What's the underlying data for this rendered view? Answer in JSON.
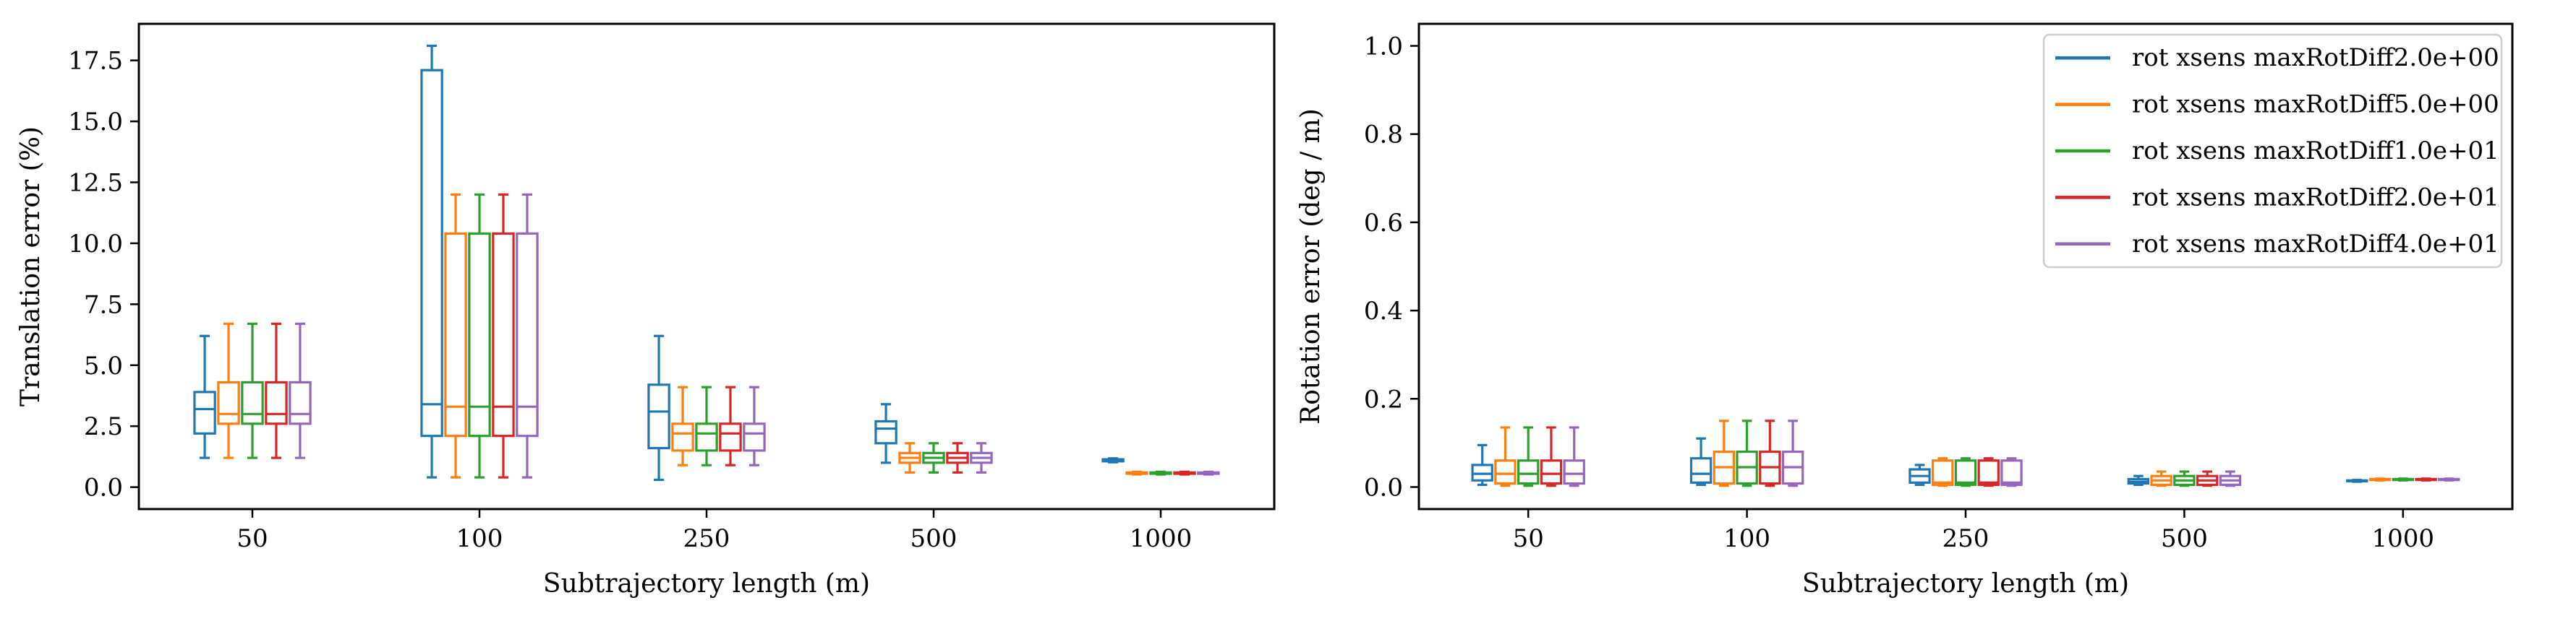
{
  "colors": {
    "series": [
      "#1f77b4",
      "#ff7f0e",
      "#2ca02c",
      "#d62728",
      "#9467bd"
    ],
    "frame": "#000000",
    "legend_border": "#cccccc"
  },
  "chart_data": [
    {
      "type": "box",
      "title": "",
      "xlabel": "Subtrajectory length (m)",
      "ylabel": "Translation error (%)",
      "categories": [
        "50",
        "100",
        "250",
        "500",
        "1000"
      ],
      "ylim": [
        -0.9,
        19.0
      ],
      "yticks": [
        0.0,
        2.5,
        5.0,
        7.5,
        10.0,
        12.5,
        15.0,
        17.5
      ],
      "ytick_labels": [
        "0.0",
        "2.5",
        "5.0",
        "7.5",
        "10.0",
        "12.5",
        "15.0",
        "17.5"
      ],
      "grid": false,
      "legend": false,
      "series": [
        {
          "name": "rot xsens maxRotDiff2.0e+00",
          "boxes": [
            {
              "whislo": 1.2,
              "q1": 2.2,
              "med": 3.2,
              "q3": 3.9,
              "whishi": 6.2
            },
            {
              "whislo": 0.4,
              "q1": 2.1,
              "med": 3.4,
              "q3": 17.1,
              "whishi": 18.1
            },
            {
              "whislo": 0.3,
              "q1": 1.6,
              "med": 3.1,
              "q3": 4.2,
              "whishi": 6.2
            },
            {
              "whislo": 1.0,
              "q1": 1.8,
              "med": 2.4,
              "q3": 2.7,
              "whishi": 3.4
            },
            {
              "whislo": 1.02,
              "q1": 1.06,
              "med": 1.1,
              "q3": 1.14,
              "whishi": 1.18
            }
          ]
        },
        {
          "name": "rot xsens maxRotDiff5.0e+00",
          "boxes": [
            {
              "whislo": 1.2,
              "q1": 2.6,
              "med": 3.0,
              "q3": 4.3,
              "whishi": 6.7
            },
            {
              "whislo": 0.4,
              "q1": 2.1,
              "med": 3.3,
              "q3": 10.4,
              "whishi": 12.0
            },
            {
              "whislo": 0.9,
              "q1": 1.5,
              "med": 2.2,
              "q3": 2.6,
              "whishi": 4.1
            },
            {
              "whislo": 0.6,
              "q1": 1.0,
              "med": 1.2,
              "q3": 1.4,
              "whishi": 1.8
            },
            {
              "whislo": 0.52,
              "q1": 0.55,
              "med": 0.57,
              "q3": 0.6,
              "whishi": 0.63
            }
          ]
        },
        {
          "name": "rot xsens maxRotDiff1.0e+01",
          "boxes": [
            {
              "whislo": 1.2,
              "q1": 2.6,
              "med": 3.0,
              "q3": 4.3,
              "whishi": 6.7
            },
            {
              "whislo": 0.4,
              "q1": 2.1,
              "med": 3.3,
              "q3": 10.4,
              "whishi": 12.0
            },
            {
              "whislo": 0.9,
              "q1": 1.5,
              "med": 2.2,
              "q3": 2.6,
              "whishi": 4.1
            },
            {
              "whislo": 0.6,
              "q1": 1.0,
              "med": 1.2,
              "q3": 1.4,
              "whishi": 1.8
            },
            {
              "whislo": 0.52,
              "q1": 0.55,
              "med": 0.57,
              "q3": 0.6,
              "whishi": 0.63
            }
          ]
        },
        {
          "name": "rot xsens maxRotDiff2.0e+01",
          "boxes": [
            {
              "whislo": 1.2,
              "q1": 2.6,
              "med": 3.0,
              "q3": 4.3,
              "whishi": 6.7
            },
            {
              "whislo": 0.4,
              "q1": 2.1,
              "med": 3.3,
              "q3": 10.4,
              "whishi": 12.0
            },
            {
              "whislo": 0.9,
              "q1": 1.5,
              "med": 2.2,
              "q3": 2.6,
              "whishi": 4.1
            },
            {
              "whislo": 0.6,
              "q1": 1.0,
              "med": 1.2,
              "q3": 1.4,
              "whishi": 1.8
            },
            {
              "whislo": 0.52,
              "q1": 0.55,
              "med": 0.57,
              "q3": 0.6,
              "whishi": 0.63
            }
          ]
        },
        {
          "name": "rot xsens maxRotDiff4.0e+01",
          "boxes": [
            {
              "whislo": 1.2,
              "q1": 2.6,
              "med": 3.0,
              "q3": 4.3,
              "whishi": 6.7
            },
            {
              "whislo": 0.4,
              "q1": 2.1,
              "med": 3.3,
              "q3": 10.4,
              "whishi": 12.0
            },
            {
              "whislo": 0.9,
              "q1": 1.5,
              "med": 2.2,
              "q3": 2.6,
              "whishi": 4.1
            },
            {
              "whislo": 0.6,
              "q1": 1.0,
              "med": 1.2,
              "q3": 1.4,
              "whishi": 1.8
            },
            {
              "whislo": 0.52,
              "q1": 0.55,
              "med": 0.57,
              "q3": 0.6,
              "whishi": 0.63
            }
          ]
        }
      ]
    },
    {
      "type": "box",
      "title": "",
      "xlabel": "Subtrajectory length (m)",
      "ylabel": "Rotation error (deg / m)",
      "categories": [
        "50",
        "100",
        "250",
        "500",
        "1000"
      ],
      "ylim": [
        -0.05,
        1.05
      ],
      "yticks": [
        0.0,
        0.2,
        0.4,
        0.6,
        0.8,
        1.0
      ],
      "ytick_labels": [
        "0.0",
        "0.2",
        "0.4",
        "0.6",
        "0.8",
        "1.0"
      ],
      "grid": false,
      "legend": true,
      "legend_loc": "upper right",
      "series": [
        {
          "name": "rot xsens maxRotDiff2.0e+00",
          "boxes": [
            {
              "whislo": 0.005,
              "q1": 0.015,
              "med": 0.03,
              "q3": 0.05,
              "whishi": 0.095
            },
            {
              "whislo": 0.005,
              "q1": 0.01,
              "med": 0.03,
              "q3": 0.065,
              "whishi": 0.11
            },
            {
              "whislo": 0.005,
              "q1": 0.01,
              "med": 0.025,
              "q3": 0.04,
              "whishi": 0.05
            },
            {
              "whislo": 0.005,
              "q1": 0.008,
              "med": 0.012,
              "q3": 0.018,
              "whishi": 0.025
            },
            {
              "whislo": 0.012,
              "q1": 0.013,
              "med": 0.014,
              "q3": 0.015,
              "whishi": 0.016
            }
          ]
        },
        {
          "name": "rot xsens maxRotDiff5.0e+00",
          "boxes": [
            {
              "whislo": 0.003,
              "q1": 0.008,
              "med": 0.03,
              "q3": 0.06,
              "whishi": 0.135
            },
            {
              "whislo": 0.003,
              "q1": 0.008,
              "med": 0.045,
              "q3": 0.08,
              "whishi": 0.15
            },
            {
              "whislo": 0.003,
              "q1": 0.005,
              "med": 0.01,
              "q3": 0.06,
              "whishi": 0.065
            },
            {
              "whislo": 0.003,
              "q1": 0.005,
              "med": 0.015,
              "q3": 0.025,
              "whishi": 0.035
            },
            {
              "whislo": 0.015,
              "q1": 0.016,
              "med": 0.017,
              "q3": 0.018,
              "whishi": 0.019
            }
          ]
        },
        {
          "name": "rot xsens maxRotDiff1.0e+01",
          "boxes": [
            {
              "whislo": 0.003,
              "q1": 0.008,
              "med": 0.03,
              "q3": 0.06,
              "whishi": 0.135
            },
            {
              "whislo": 0.003,
              "q1": 0.008,
              "med": 0.045,
              "q3": 0.08,
              "whishi": 0.15
            },
            {
              "whislo": 0.003,
              "q1": 0.005,
              "med": 0.01,
              "q3": 0.06,
              "whishi": 0.065
            },
            {
              "whislo": 0.003,
              "q1": 0.005,
              "med": 0.015,
              "q3": 0.025,
              "whishi": 0.035
            },
            {
              "whislo": 0.015,
              "q1": 0.016,
              "med": 0.017,
              "q3": 0.018,
              "whishi": 0.019
            }
          ]
        },
        {
          "name": "rot xsens maxRotDiff2.0e+01",
          "boxes": [
            {
              "whislo": 0.003,
              "q1": 0.008,
              "med": 0.03,
              "q3": 0.06,
              "whishi": 0.135
            },
            {
              "whislo": 0.003,
              "q1": 0.008,
              "med": 0.045,
              "q3": 0.08,
              "whishi": 0.15
            },
            {
              "whislo": 0.003,
              "q1": 0.005,
              "med": 0.01,
              "q3": 0.06,
              "whishi": 0.065
            },
            {
              "whislo": 0.003,
              "q1": 0.005,
              "med": 0.015,
              "q3": 0.025,
              "whishi": 0.035
            },
            {
              "whislo": 0.015,
              "q1": 0.016,
              "med": 0.017,
              "q3": 0.018,
              "whishi": 0.019
            }
          ]
        },
        {
          "name": "rot xsens maxRotDiff4.0e+01",
          "boxes": [
            {
              "whislo": 0.003,
              "q1": 0.008,
              "med": 0.03,
              "q3": 0.06,
              "whishi": 0.135
            },
            {
              "whislo": 0.003,
              "q1": 0.008,
              "med": 0.045,
              "q3": 0.08,
              "whishi": 0.15
            },
            {
              "whislo": 0.003,
              "q1": 0.005,
              "med": 0.01,
              "q3": 0.06,
              "whishi": 0.065
            },
            {
              "whislo": 0.003,
              "q1": 0.005,
              "med": 0.015,
              "q3": 0.025,
              "whishi": 0.035
            },
            {
              "whislo": 0.015,
              "q1": 0.016,
              "med": 0.017,
              "q3": 0.018,
              "whishi": 0.019
            }
          ]
        }
      ]
    }
  ]
}
